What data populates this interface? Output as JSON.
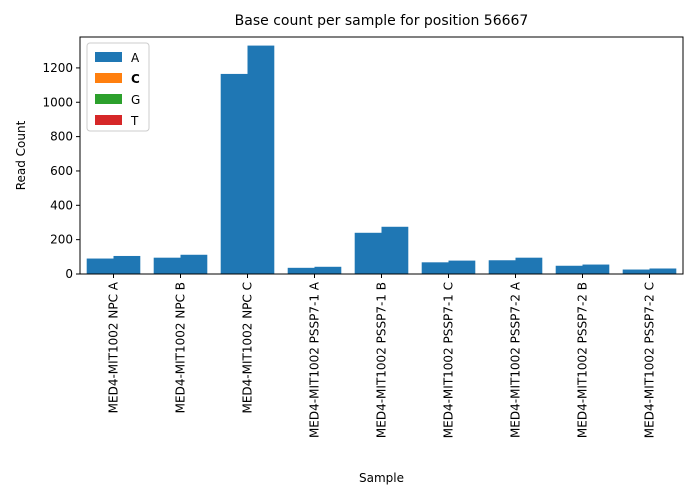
{
  "chart_data": {
    "type": "bar",
    "title": "Base count per sample for position 56667",
    "xlabel": "Sample",
    "ylabel": "Read Count",
    "ylim": [
      0,
      1380
    ],
    "yticks": [
      0,
      200,
      400,
      600,
      800,
      1000,
      1200
    ],
    "categories": [
      "MED4-MIT1002 NPC A",
      "MED4-MIT1002 NPC B",
      "MED4-MIT1002 NPC C",
      "MED4-MIT1002 PSSP7-1 A",
      "MED4-MIT1002 PSSP7-1 B",
      "MED4-MIT1002 PSSP7-1 C",
      "MED4-MIT1002 PSSP7-2 A",
      "MED4-MIT1002 PSSP7-2 B",
      "MED4-MIT1002 PSSP7-2 C"
    ],
    "series": [
      {
        "name": "A",
        "color": "#1f77b4",
        "values": [
          [
            90,
            105
          ],
          [
            95,
            112
          ],
          [
            1165,
            1330
          ],
          [
            36,
            42
          ],
          [
            240,
            275
          ],
          [
            68,
            78
          ],
          [
            80,
            95
          ],
          [
            48,
            55
          ],
          [
            26,
            32
          ]
        ]
      },
      {
        "name": "C",
        "color": "#ff7f0e",
        "values": [
          [
            0,
            0
          ],
          [
            0,
            0
          ],
          [
            0,
            0
          ],
          [
            0,
            0
          ],
          [
            0,
            0
          ],
          [
            0,
            0
          ],
          [
            0,
            0
          ],
          [
            0,
            0
          ],
          [
            0,
            0
          ]
        ]
      },
      {
        "name": "G",
        "color": "#2ca02c",
        "values": [
          [
            0,
            0
          ],
          [
            0,
            0
          ],
          [
            0,
            0
          ],
          [
            0,
            0
          ],
          [
            0,
            0
          ],
          [
            0,
            0
          ],
          [
            0,
            0
          ],
          [
            0,
            0
          ],
          [
            0,
            0
          ]
        ]
      },
      {
        "name": "T",
        "color": "#d62728",
        "values": [
          [
            0,
            0
          ],
          [
            0,
            0
          ],
          [
            0,
            0
          ],
          [
            0,
            0
          ],
          [
            0,
            0
          ],
          [
            0,
            0
          ],
          [
            0,
            0
          ],
          [
            0,
            0
          ],
          [
            0,
            0
          ]
        ]
      }
    ],
    "legend": {
      "position": "top-left",
      "bold_entry": "C"
    },
    "grid": false
  }
}
